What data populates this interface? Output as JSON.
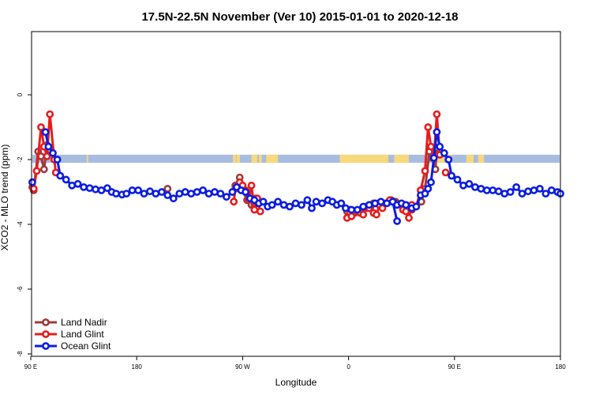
{
  "chart_data": {
    "type": "line",
    "title": "17.5N-22.5N November (Ver 10)   2015-01-01 to 2020-12-18",
    "xlabel": "Longitude",
    "ylabel": "XCO2 - MLO trend (ppm)",
    "xlim": [
      90,
      450
    ],
    "ylim": [
      -8,
      2
    ],
    "x_ticks": [
      {
        "value": 90,
        "label": "90 E"
      },
      {
        "value": 162,
        "label": "180"
      },
      {
        "value": 234,
        "label": "90 W"
      },
      {
        "value": 306,
        "label": "0"
      },
      {
        "value": 378,
        "label": "90 E"
      },
      {
        "value": 450,
        "label": "180"
      }
    ],
    "y_ticks": [
      {
        "value": 0,
        "label": "0"
      },
      {
        "value": -2,
        "label": "-2"
      },
      {
        "value": -4,
        "label": "-4"
      },
      {
        "value": -6,
        "label": "-6"
      },
      {
        "value": -8,
        "label": "-8"
      }
    ],
    "grid": false,
    "legend_position": "bottom-left",
    "band": {
      "y_top": -1.85,
      "y_bottom": -2.1,
      "ocean_color": "#a7bce0",
      "land_color": "#f7d87a",
      "land_segments": [
        [
          128,
          129
        ],
        [
          227.4,
          229.4
        ],
        [
          229.8,
          232.2
        ],
        [
          240,
          244
        ],
        [
          245,
          247
        ],
        [
          250,
          258
        ],
        [
          300,
          333
        ],
        [
          337,
          347
        ],
        [
          365,
          371
        ],
        [
          372,
          376
        ],
        [
          386,
          391
        ],
        [
          394,
          398
        ]
      ]
    },
    "series": [
      {
        "name": "Land Nadir",
        "color": "#9b3b3b",
        "segments": [
          [
            [
              91,
              -2.85
            ],
            [
              92,
              -2.95
            ],
            [
              95,
              -1.75
            ],
            [
              97,
              -1.9
            ],
            [
              99,
              -2.3
            ],
            [
              101,
              -1.55
            ],
            [
              103,
              -1.7
            ]
          ],
          [
            [
              183,
              -2.9
            ]
          ],
          [
            [
              229,
              -2.8
            ],
            [
              232,
              -2.55
            ],
            [
              234,
              -2.95
            ],
            [
              237,
              -3.25
            ],
            [
              240,
              -3.4
            ],
            [
              242,
              -3.4
            ],
            [
              243,
              -3.2
            ]
          ],
          [
            [
              305,
              -3.6
            ],
            [
              307,
              -3.55
            ],
            [
              310,
              -3.65
            ],
            [
              312,
              -3.6
            ],
            [
              314,
              -3.62
            ],
            [
              318,
              -3.45
            ],
            [
              321,
              -3.45
            ],
            [
              323,
              -3.35
            ],
            [
              326,
              -3.35
            ],
            [
              327,
              -3.4
            ],
            [
              329,
              -3.4
            ],
            [
              335,
              -3.25
            ],
            [
              338,
              -3.3
            ],
            [
              343,
              -3.55
            ],
            [
              346,
              -3.45
            ],
            [
              349,
              -3.55
            ]
          ],
          [
            [
              355,
              -3.3
            ],
            [
              355.5,
              -3.3
            ],
            [
              358,
              -2.9
            ],
            [
              361,
              -1.75
            ],
            [
              363,
              -1.95
            ],
            [
              365,
              -2.3
            ],
            [
              366,
              -1.65
            ],
            [
              368,
              -1.75
            ]
          ]
        ]
      },
      {
        "name": "Land Glint",
        "color": "#e61c1c",
        "segments": [
          [
            [
              92,
              -2.9
            ],
            [
              94,
              -2.35
            ],
            [
              97,
              -1.0
            ],
            [
              99,
              -1.6
            ],
            [
              101,
              -1.9
            ],
            [
              103,
              -0.6
            ],
            [
              106,
              -2.0
            ],
            [
              107,
              -2.4
            ]
          ],
          [
            [
              228,
              -3.3
            ],
            [
              229,
              -2.9
            ],
            [
              232,
              -2.7
            ],
            [
              234,
              -2.8
            ],
            [
              236,
              -2.95
            ],
            [
              238,
              -3.25
            ],
            [
              240,
              -2.8
            ],
            [
              242,
              -3.55
            ],
            [
              244,
              -3.2
            ],
            [
              246,
              -3.6
            ]
          ],
          [
            [
              305,
              -3.8
            ],
            [
              307,
              -3.65
            ],
            [
              308,
              -3.75
            ],
            [
              311,
              -3.6
            ],
            [
              314,
              -3.65
            ],
            [
              316,
              -3.7
            ],
            [
              318,
              -3.5
            ],
            [
              320,
              -3.5
            ],
            [
              323,
              -3.65
            ],
            [
              325,
              -3.7
            ],
            [
              327,
              -3.4
            ],
            [
              329,
              -3.5
            ],
            [
              331,
              -3.35
            ],
            [
              334,
              -3.25
            ],
            [
              338,
              -3.35
            ],
            [
              343,
              -3.55
            ]
          ],
          [
            [
              345,
              -3.6
            ],
            [
              347,
              -3.8
            ],
            [
              349,
              -3.4
            ],
            [
              352,
              -3.45
            ],
            [
              355,
              -2.95
            ],
            [
              358,
              -2.35
            ],
            [
              360,
              -1.0
            ],
            [
              362,
              -1.6
            ],
            [
              364,
              -1.95
            ],
            [
              366,
              -0.6
            ],
            [
              368,
              -1.85
            ]
          ],
          [
            [
              372,
              -2.4
            ]
          ]
        ]
      },
      {
        "name": "Ocean Glint",
        "color": "#0b1de0",
        "segments": [
          [
            [
              91,
              -2.7
            ]
          ],
          [
            [
              100,
              -1.15
            ],
            [
              102,
              -1.6
            ],
            [
              105,
              -1.8
            ],
            [
              108,
              -2.0
            ],
            [
              110,
              -2.5
            ],
            [
              114,
              -2.62
            ],
            [
              118,
              -2.8
            ],
            [
              122,
              -2.75
            ],
            [
              126,
              -2.85
            ],
            [
              130,
              -2.88
            ],
            [
              134,
              -2.92
            ],
            [
              138,
              -2.95
            ],
            [
              142,
              -2.88
            ],
            [
              145,
              -3.0
            ],
            [
              148,
              -3.05
            ],
            [
              152,
              -3.08
            ],
            [
              155,
              -3.05
            ],
            [
              159,
              -2.95
            ],
            [
              163,
              -2.95
            ],
            [
              167,
              -3.05
            ],
            [
              171,
              -2.98
            ],
            [
              175,
              -3.05
            ],
            [
              179,
              -3.0
            ],
            [
              183,
              -3.1
            ],
            [
              187,
              -3.2
            ],
            [
              191,
              -3.05
            ],
            [
              195,
              -3.0
            ],
            [
              199,
              -3.05
            ],
            [
              203,
              -3.0
            ],
            [
              207,
              -2.95
            ],
            [
              211,
              -3.05
            ],
            [
              215,
              -3.0
            ],
            [
              219,
              -3.05
            ],
            [
              223,
              -3.15
            ],
            [
              227,
              -3.0
            ],
            [
              230,
              -2.85
            ],
            [
              233,
              -2.95
            ],
            [
              236,
              -3.0
            ],
            [
              239,
              -3.2
            ],
            [
              242,
              -3.25
            ],
            [
              245,
              -3.35
            ],
            [
              248,
              -3.3
            ],
            [
              251,
              -3.45
            ],
            [
              254,
              -3.4
            ],
            [
              258,
              -3.3
            ],
            [
              262,
              -3.4
            ],
            [
              266,
              -3.45
            ],
            [
              270,
              -3.35
            ],
            [
              274,
              -3.4
            ],
            [
              278,
              -3.25
            ],
            [
              281,
              -3.5
            ],
            [
              284,
              -3.3
            ],
            [
              288,
              -3.35
            ],
            [
              292,
              -3.25
            ],
            [
              295,
              -3.3
            ],
            [
              298,
              -3.4
            ],
            [
              301,
              -3.35
            ],
            [
              304,
              -3.5
            ],
            [
              308,
              -3.55
            ],
            [
              312,
              -3.55
            ],
            [
              316,
              -3.45
            ],
            [
              320,
              -3.4
            ],
            [
              324,
              -3.35
            ],
            [
              328,
              -3.3
            ],
            [
              332,
              -3.35
            ],
            [
              336,
              -3.3
            ],
            [
              339,
              -3.9
            ]
          ],
          [
            [
              336,
              -3.3
            ],
            [
              339,
              -3.4
            ],
            [
              342,
              -3.35
            ],
            [
              345,
              -3.4
            ],
            [
              349,
              -3.5
            ],
            [
              352,
              -3.45
            ],
            [
              355,
              -3.1
            ],
            [
              358,
              -3.05
            ],
            [
              360,
              -2.9
            ],
            [
              362,
              -2.7
            ],
            [
              364,
              -1.95
            ],
            [
              366,
              -1.15
            ],
            [
              368,
              -1.6
            ],
            [
              371,
              -1.8
            ],
            [
              374,
              -2.0
            ],
            [
              376,
              -2.5
            ],
            [
              380,
              -2.62
            ],
            [
              384,
              -2.8
            ],
            [
              388,
              -2.75
            ],
            [
              392,
              -2.85
            ],
            [
              396,
              -2.9
            ],
            [
              400,
              -2.95
            ],
            [
              404,
              -2.95
            ],
            [
              408,
              -2.98
            ],
            [
              412,
              -3.05
            ],
            [
              416,
              -3.0
            ],
            [
              420,
              -2.85
            ],
            [
              424,
              -3.05
            ],
            [
              428,
              -2.98
            ],
            [
              432,
              -2.95
            ],
            [
              436,
              -2.9
            ],
            [
              440,
              -3.05
            ],
            [
              444,
              -2.95
            ],
            [
              448,
              -3.0
            ],
            [
              450,
              -3.05
            ]
          ]
        ]
      }
    ]
  }
}
